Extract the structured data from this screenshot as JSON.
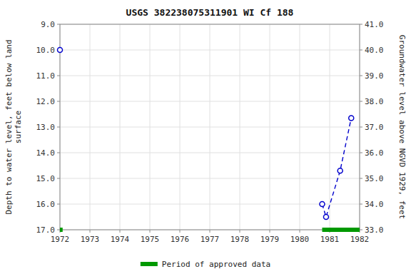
{
  "chart_data": {
    "type": "line",
    "title": "USGS 382238075311901 WI Cf 188",
    "y_label": "Depth to water level, feet below land\nsurface",
    "y2_label": "Groundwater level above NGVD 1929, feet",
    "series": [
      {
        "type": "line",
        "x": [
          1972.0
        ],
        "values": [
          10.0
        ],
        "color": "#0000cc",
        "marker": "circle",
        "line_style": "none"
      },
      {
        "type": "line",
        "x": [
          1980.75,
          1980.88,
          1981.35,
          1981.72
        ],
        "values": [
          16.0,
          16.5,
          14.7,
          12.65
        ],
        "color": "#0000cc",
        "marker": "circle",
        "line_style": "dashed"
      },
      {
        "type": "segments",
        "name": "Period of approved data",
        "x_start": [
          1972.0,
          1980.75
        ],
        "x_end": [
          1972.09,
          1982.0
        ],
        "values": [
          17.0,
          17.0
        ],
        "color": "#009900",
        "line_style": "solid"
      }
    ],
    "xlim": [
      1972,
      1982
    ],
    "xticks": [
      1972,
      1973,
      1974,
      1975,
      1976,
      1977,
      1978,
      1979,
      1980,
      1981,
      1982
    ],
    "ylim": [
      17.0,
      9.0
    ],
    "yticks": [
      {
        "value": 9.0,
        "label": "9.0"
      },
      {
        "value": 10.0,
        "label": "10.0"
      },
      {
        "value": 11.0,
        "label": "11.0"
      },
      {
        "value": 12.0,
        "label": "12.0"
      },
      {
        "value": 13.0,
        "label": "13.0"
      },
      {
        "value": 14.0,
        "label": "14.0"
      },
      {
        "value": 15.0,
        "label": "15.0"
      },
      {
        "value": 16.0,
        "label": "16.0"
      },
      {
        "value": 17.0,
        "label": "17.0"
      }
    ],
    "y2lim": [
      33.0,
      41.0
    ],
    "y2ticks": [
      {
        "value": 41.0,
        "label": "41.0"
      },
      {
        "value": 40.0,
        "label": "40.0"
      },
      {
        "value": 39.0,
        "label": "39.0"
      },
      {
        "value": 38.0,
        "label": "38.0"
      },
      {
        "value": 37.0,
        "label": "37.0"
      },
      {
        "value": 36.0,
        "label": "36.0"
      },
      {
        "value": 35.0,
        "label": "35.0"
      },
      {
        "value": 34.0,
        "label": "34.0"
      },
      {
        "value": 33.0,
        "label": "33.0"
      }
    ],
    "grid": true,
    "legend": "bottom"
  }
}
